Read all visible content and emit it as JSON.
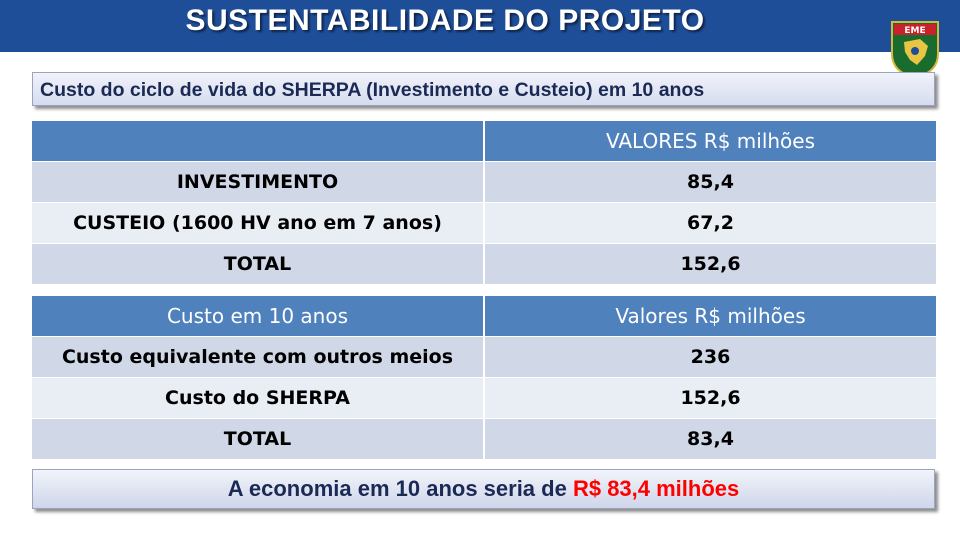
{
  "header": {
    "title": "SUSTENTABILIDADE DO PROJETO",
    "emblem_text": "EME"
  },
  "subtitle": "Custo do ciclo de vida do SHERPA (Investimento e Custeio) em 10 anos",
  "table1": {
    "header": [
      "",
      "VALORES R$ milhões"
    ],
    "rows": [
      [
        "INVESTIMENTO",
        "85,4"
      ],
      [
        "CUSTEIO (1600 HV ano em 7 anos)",
        "67,2"
      ],
      [
        "TOTAL",
        "152,6"
      ]
    ]
  },
  "table2": {
    "header": [
      "Custo em 10 anos",
      "Valores R$ milhões"
    ],
    "rows": [
      [
        "Custo equivalente com outros meios",
        "236"
      ],
      [
        "Custo do SHERPA",
        "152,6"
      ],
      [
        "TOTAL",
        "83,4"
      ]
    ]
  },
  "footer": {
    "text": "A economia em 10 anos seria de",
    "highlight": "R$ 83,4 milhões"
  },
  "colors": {
    "header_bg": "#1f4e99",
    "table_header": "#4f81bd",
    "row_odd": "#d0d8e8",
    "row_even": "#e9edf4",
    "highlight": "#ff0000"
  }
}
